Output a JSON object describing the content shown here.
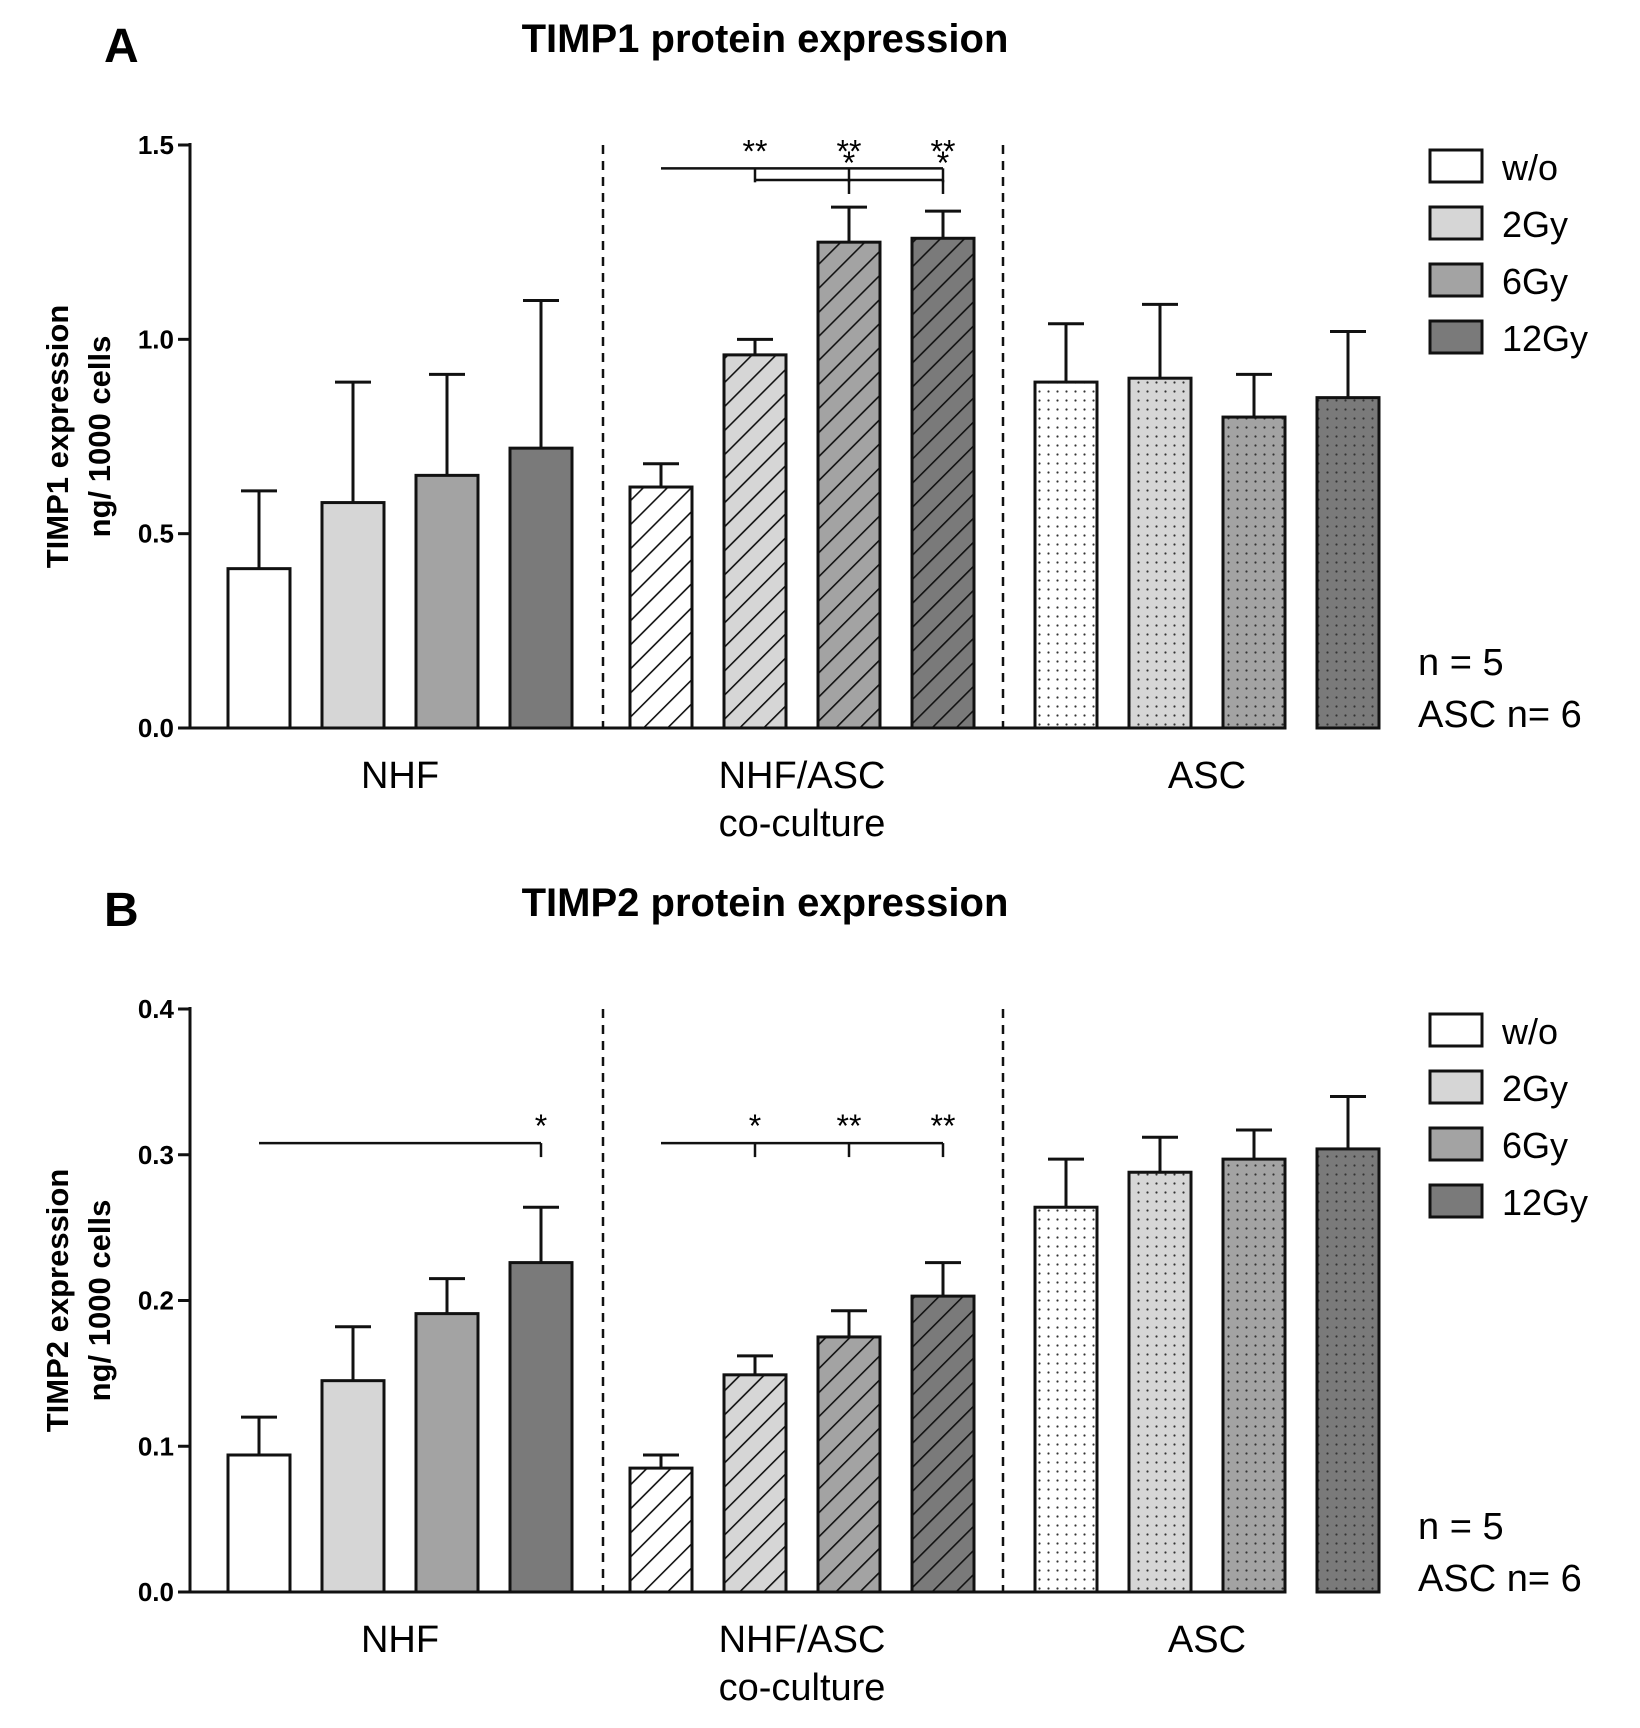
{
  "figure": {
    "groups": [
      {
        "label": "NHF",
        "sub": ""
      },
      {
        "label": "NHF/ASC",
        "sub": "co-culture"
      },
      {
        "label": "ASC",
        "sub": ""
      }
    ],
    "legend": [
      "w/o",
      "2Gy",
      "6Gy",
      "12Gy"
    ],
    "note1": "n = 5",
    "note2": "ASC n= 6",
    "colors": {
      "wo": "#ffffff",
      "gy2": "#d6d6d6",
      "gy6": "#a3a3a3",
      "gy12": "#7a7a7a",
      "stroke": "#111111"
    }
  },
  "chart_data": [
    {
      "type": "bar",
      "panel": "A",
      "title": "TIMP1 protein expression",
      "ylabel_line1": "TIMP1 expression",
      "ylabel_line2": "ng/ 1000 cells",
      "ylim": [
        0,
        1.5
      ],
      "yticks": [
        "0.0",
        "0.5",
        "1.0",
        "1.5"
      ],
      "categories": [
        "NHF",
        "NHF/ASC co-culture",
        "ASC"
      ],
      "series": [
        {
          "name": "w/o",
          "values": [
            0.41,
            0.62,
            0.89
          ],
          "errors": [
            0.2,
            0.06,
            0.15
          ]
        },
        {
          "name": "2Gy",
          "values": [
            0.58,
            0.96,
            0.9
          ],
          "errors": [
            0.31,
            0.04,
            0.19
          ]
        },
        {
          "name": "6Gy",
          "values": [
            0.65,
            1.25,
            0.8
          ],
          "errors": [
            0.26,
            0.09,
            0.11
          ]
        },
        {
          "name": "12Gy",
          "values": [
            0.72,
            1.26,
            0.85
          ],
          "errors": [
            0.38,
            0.07,
            0.17
          ]
        }
      ],
      "significance": [
        {
          "group": 1,
          "ref": 0,
          "y": 1.44,
          "ticks": [
            {
              "bar": 1,
              "label": "**"
            },
            {
              "bar": 2,
              "label": "**"
            },
            {
              "bar": 3,
              "label": "**"
            }
          ]
        },
        {
          "group": 1,
          "ref": 1,
          "y": 1.41,
          "ticks": [
            {
              "bar": 2,
              "label": "*"
            },
            {
              "bar": 3,
              "label": "*"
            }
          ]
        }
      ]
    },
    {
      "type": "bar",
      "panel": "B",
      "title": "TIMP2 protein expression",
      "ylabel_line1": "TIMP2 expression",
      "ylabel_line2": "ng/ 1000 cells",
      "ylim": [
        0,
        0.4
      ],
      "yticks": [
        "0.0",
        "0.1",
        "0.2",
        "0.3",
        "0.4"
      ],
      "categories": [
        "NHF",
        "NHF/ASC co-culture",
        "ASC"
      ],
      "series": [
        {
          "name": "w/o",
          "values": [
            0.094,
            0.085,
            0.264
          ],
          "errors": [
            0.026,
            0.009,
            0.033
          ]
        },
        {
          "name": "2Gy",
          "values": [
            0.145,
            0.149,
            0.288
          ],
          "errors": [
            0.037,
            0.013,
            0.024
          ]
        },
        {
          "name": "6Gy",
          "values": [
            0.191,
            0.175,
            0.297
          ],
          "errors": [
            0.024,
            0.018,
            0.02
          ]
        },
        {
          "name": "12Gy",
          "values": [
            0.226,
            0.203,
            0.304
          ],
          "errors": [
            0.038,
            0.023,
            0.036
          ]
        }
      ],
      "significance": [
        {
          "group": 0,
          "ref": 0,
          "y": 0.308,
          "ticks": [
            {
              "bar": 3,
              "label": "*"
            }
          ]
        },
        {
          "group": 1,
          "ref": 0,
          "y": 0.308,
          "ticks": [
            {
              "bar": 1,
              "label": "*"
            },
            {
              "bar": 2,
              "label": "**"
            },
            {
              "bar": 3,
              "label": "**"
            }
          ]
        }
      ]
    }
  ]
}
